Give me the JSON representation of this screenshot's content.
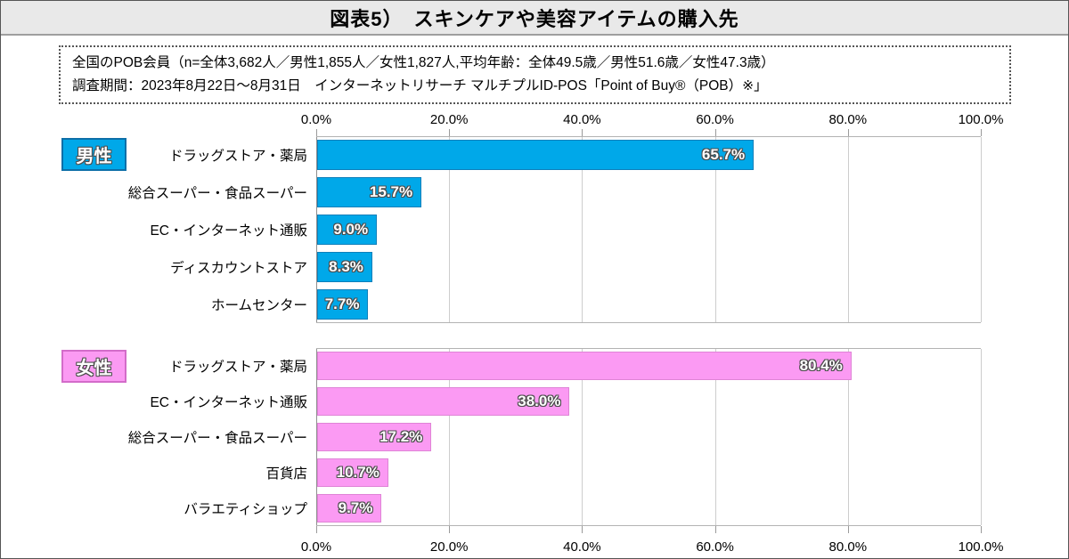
{
  "header": {
    "title": "図表5）　スキンケアや美容アイテムの購入先"
  },
  "note": {
    "line1": "全国のPOB会員（n=全体3,682人／男性1,855人／女性1,827人,平均年齢：全体49.5歳／男性51.6歳／女性47.3歳）",
    "line2": "調査期間：2023年8月22日～8月31日　インターネットリサーチ マルチプルID-POS「Point of Buy®（POB）※」"
  },
  "axis": {
    "tick_labels": [
      "0.0%",
      "20.0%",
      "40.0%",
      "60.0%",
      "80.0%",
      "100.0%"
    ],
    "tick_values": [
      0,
      20,
      40,
      60,
      80,
      100
    ],
    "max": 100
  },
  "chart_data": [
    {
      "type": "bar",
      "orientation": "horizontal",
      "group": "男性",
      "key": "male",
      "bar_color": "#00a8e9",
      "bar_border_color": "#0d7fba",
      "legend_border_color": "#0d6fa8",
      "categories": [
        "ドラッグストア・薬局",
        "総合スーパー・食品スーパー",
        "EC・インターネット通販",
        "ディスカウントストア",
        "ホームセンター"
      ],
      "values": [
        65.7,
        15.7,
        9.0,
        8.3,
        7.7
      ],
      "labels": [
        "65.7%",
        "15.7%",
        "9.0%",
        "8.3%",
        "7.7%"
      ],
      "xlim": [
        0,
        100
      ],
      "axis_position": "top",
      "grid": true
    },
    {
      "type": "bar",
      "orientation": "horizontal",
      "group": "女性",
      "key": "female",
      "bar_color": "#fb9af3",
      "bar_border_color": "#df84d6",
      "legend_border_color": "#d36cc9",
      "categories": [
        "ドラッグストア・薬局",
        "EC・インターネット通販",
        "総合スーパー・食品スーパー",
        "百貨店",
        "バラエティショップ"
      ],
      "values": [
        80.4,
        38.0,
        17.2,
        10.7,
        9.7
      ],
      "labels": [
        "80.4%",
        "38.0%",
        "17.2%",
        "10.7%",
        "9.7%"
      ],
      "xlim": [
        0,
        100
      ],
      "axis_position": "bottom",
      "grid": true
    }
  ]
}
